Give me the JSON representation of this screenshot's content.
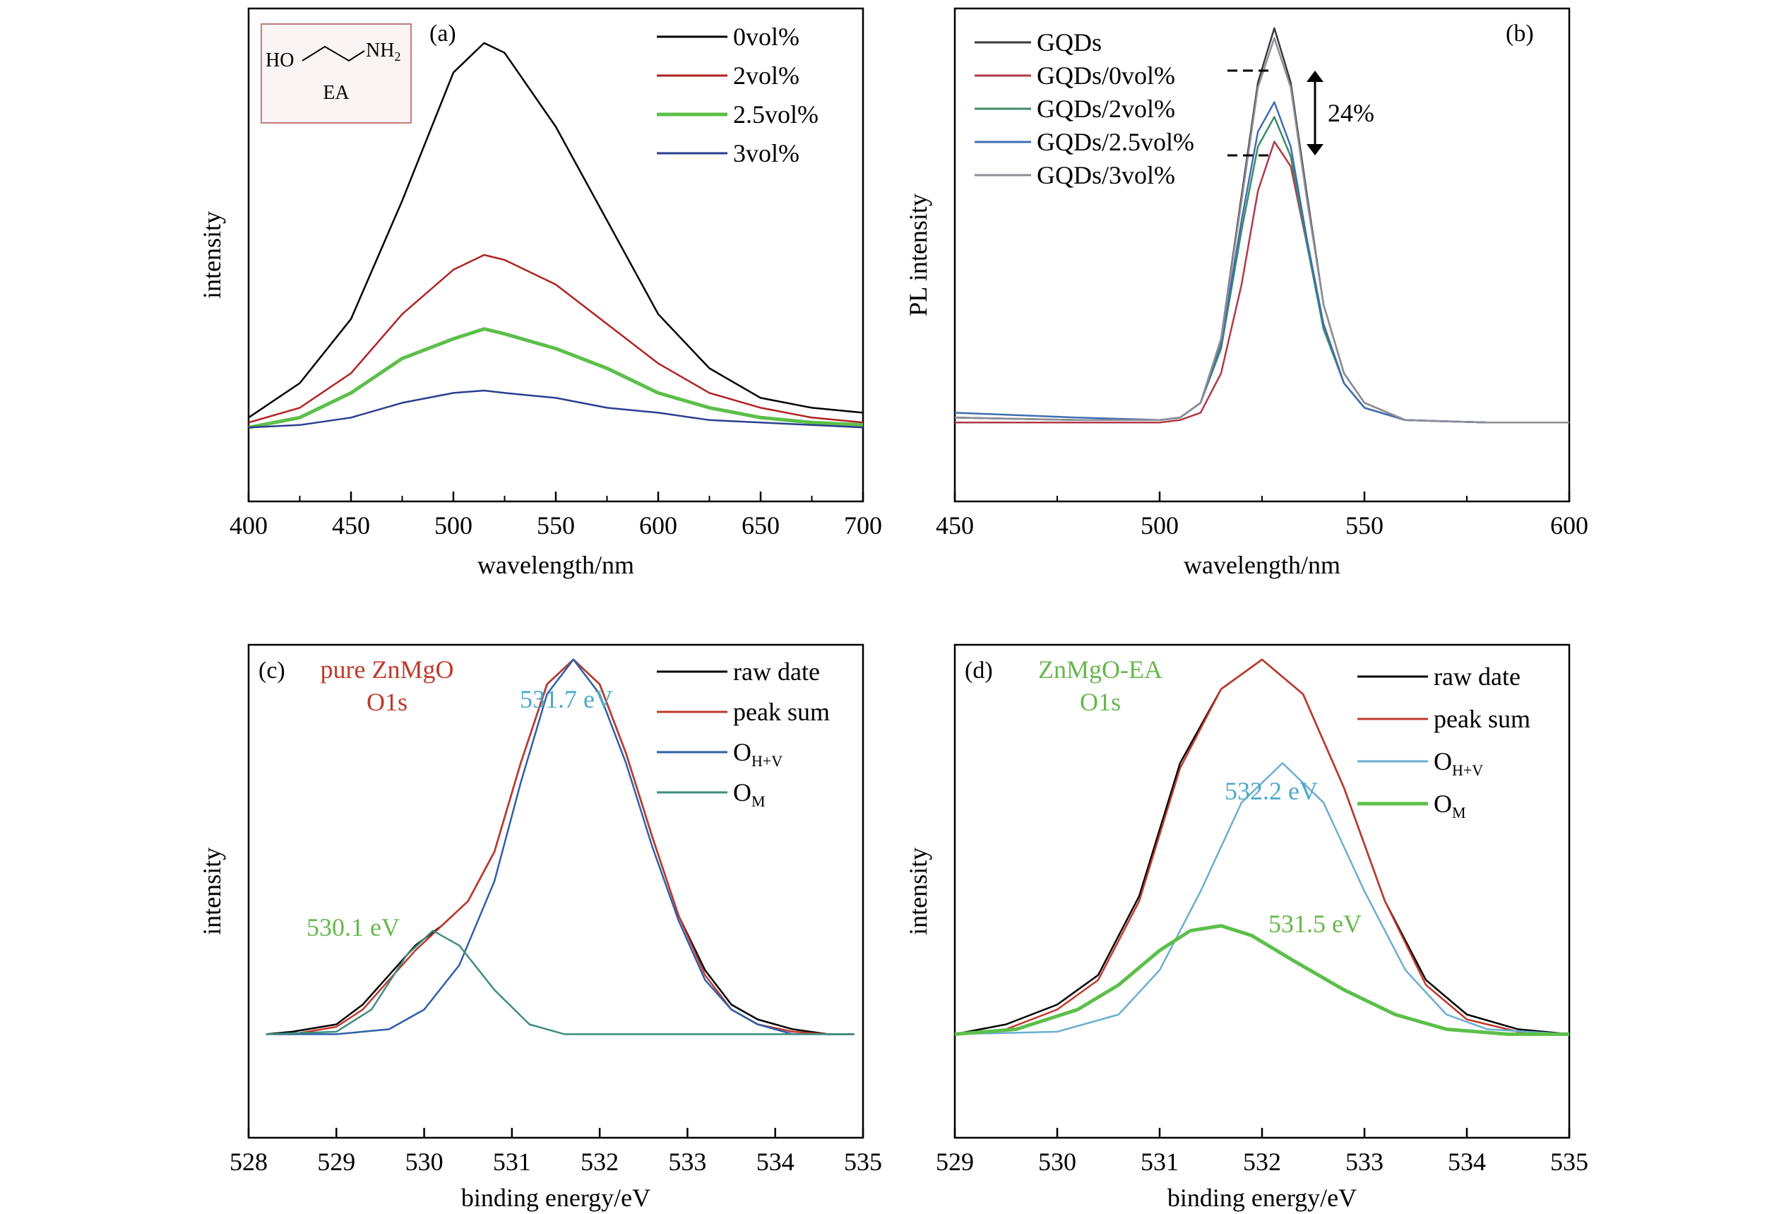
{
  "chart_data": [
    {
      "type": "line",
      "panel_label": "(a)",
      "xlabel": "wavelength/nm",
      "ylabel": "intensity",
      "xlim": [
        400,
        700
      ],
      "ylim": [
        0,
        1
      ],
      "x_ticks": [
        400,
        450,
        500,
        550,
        600,
        650,
        700
      ],
      "inset": {
        "mol_ho": "HO",
        "mol_nh": "NH",
        "mol_sub": "2",
        "mol_name": "EA"
      },
      "legend": [
        {
          "label": "0vol%",
          "color": "#000000"
        },
        {
          "label": "2vol%",
          "color": "#b22222"
        },
        {
          "label": "2.5vol%",
          "color": "#5cbf4a"
        },
        {
          "label": "3vol%",
          "color": "#2a3f8f"
        }
      ],
      "series": [
        {
          "name": "0vol%",
          "color": "#000000",
          "x": [
            400,
            425,
            450,
            475,
            500,
            515,
            525,
            550,
            575,
            600,
            625,
            650,
            675,
            700
          ],
          "y": [
            0.17,
            0.24,
            0.37,
            0.61,
            0.87,
            0.93,
            0.91,
            0.76,
            0.57,
            0.38,
            0.27,
            0.21,
            0.19,
            0.18
          ]
        },
        {
          "name": "2vol%",
          "color": "#b22222",
          "x": [
            400,
            425,
            450,
            475,
            500,
            515,
            525,
            550,
            575,
            600,
            625,
            650,
            675,
            700
          ],
          "y": [
            0.16,
            0.19,
            0.26,
            0.38,
            0.47,
            0.5,
            0.49,
            0.44,
            0.36,
            0.28,
            0.22,
            0.19,
            0.17,
            0.16
          ]
        },
        {
          "name": "2.5vol%",
          "color": "#5cbf4a",
          "x": [
            400,
            425,
            450,
            475,
            500,
            515,
            525,
            550,
            575,
            600,
            625,
            650,
            675,
            700
          ],
          "y": [
            0.15,
            0.17,
            0.22,
            0.29,
            0.33,
            0.35,
            0.34,
            0.31,
            0.27,
            0.22,
            0.19,
            0.17,
            0.16,
            0.155
          ]
        },
        {
          "name": "3vol%",
          "color": "#2a3f8f",
          "x": [
            400,
            425,
            450,
            475,
            500,
            515,
            525,
            550,
            575,
            600,
            625,
            650,
            675,
            700
          ],
          "y": [
            0.15,
            0.155,
            0.17,
            0.2,
            0.22,
            0.225,
            0.22,
            0.21,
            0.19,
            0.18,
            0.165,
            0.16,
            0.155,
            0.15
          ]
        }
      ]
    },
    {
      "type": "line",
      "panel_label": "(b)",
      "xlabel": "wavelength/nm",
      "ylabel": "PL intensity",
      "xlim": [
        450,
        600
      ],
      "ylim": [
        0,
        1
      ],
      "x_ticks": [
        450,
        500,
        550,
        600
      ],
      "annotation": "24%",
      "legend": [
        {
          "label": "GQDs",
          "color": "#3a3a3a"
        },
        {
          "label": "GQDs/0vol%",
          "color": "#b03a48"
        },
        {
          "label": "GQDs/2vol%",
          "color": "#3f8a66"
        },
        {
          "label": "GQDs/2.5vol%",
          "color": "#3f6fb0"
        },
        {
          "label": "GQDs/3vol%",
          "color": "#8e8e99"
        }
      ],
      "series": [
        {
          "name": "GQDs",
          "color": "#3a3a3a",
          "x": [
            450,
            480,
            500,
            505,
            510,
            515,
            520,
            524,
            528,
            532,
            536,
            540,
            545,
            550,
            560,
            580,
            600
          ],
          "y": [
            0.17,
            0.165,
            0.165,
            0.17,
            0.2,
            0.33,
            0.62,
            0.85,
            0.96,
            0.85,
            0.62,
            0.4,
            0.26,
            0.2,
            0.165,
            0.16,
            0.16
          ]
        },
        {
          "name": "GQDs/0vol%",
          "color": "#b03a48",
          "x": [
            450,
            480,
            500,
            505,
            510,
            515,
            520,
            524,
            528,
            532,
            536,
            540,
            545,
            550,
            560,
            580,
            600
          ],
          "y": [
            0.16,
            0.16,
            0.16,
            0.165,
            0.18,
            0.26,
            0.44,
            0.63,
            0.73,
            0.68,
            0.52,
            0.36,
            0.24,
            0.19,
            0.165,
            0.16,
            0.16
          ]
        },
        {
          "name": "GQDs/2vol%",
          "color": "#3f8a66",
          "x": [
            450,
            480,
            500,
            505,
            510,
            515,
            520,
            524,
            528,
            532,
            536,
            540,
            545,
            550,
            560,
            580,
            600
          ],
          "y": [
            0.17,
            0.165,
            0.165,
            0.17,
            0.2,
            0.31,
            0.55,
            0.72,
            0.78,
            0.7,
            0.52,
            0.35,
            0.24,
            0.19,
            0.165,
            0.16,
            0.16
          ]
        },
        {
          "name": "GQDs/2.5vol%",
          "color": "#3f6fb0",
          "x": [
            450,
            480,
            500,
            505,
            510,
            515,
            520,
            524,
            528,
            532,
            536,
            540,
            545,
            550,
            560,
            580,
            600
          ],
          "y": [
            0.18,
            0.17,
            0.165,
            0.17,
            0.2,
            0.32,
            0.57,
            0.75,
            0.81,
            0.72,
            0.53,
            0.36,
            0.24,
            0.19,
            0.165,
            0.16,
            0.16
          ]
        },
        {
          "name": "GQDs/3vol%",
          "color": "#8e8e99",
          "x": [
            450,
            480,
            500,
            505,
            510,
            515,
            520,
            524,
            528,
            532,
            536,
            540,
            545,
            550,
            560,
            580,
            600
          ],
          "y": [
            0.17,
            0.165,
            0.165,
            0.17,
            0.2,
            0.33,
            0.61,
            0.84,
            0.94,
            0.84,
            0.61,
            0.4,
            0.26,
            0.2,
            0.165,
            0.16,
            0.16
          ]
        }
      ]
    },
    {
      "type": "line",
      "panel_label": "(c)",
      "title_line1": "pure ZnMgO",
      "title_line2": "O1s",
      "xlabel": "binding energy/eV",
      "ylabel": "intensity",
      "xlim": [
        528,
        535
      ],
      "ylim": [
        0,
        1
      ],
      "x_ticks": [
        528,
        529,
        530,
        531,
        532,
        533,
        534,
        535
      ],
      "annotations": [
        {
          "text": "531.7 eV",
          "color": "#4fa8c9",
          "x": 531.7
        },
        {
          "text": "530.1 eV",
          "color": "#66b84a",
          "x": 530.1
        }
      ],
      "legend": [
        {
          "label": "raw date",
          "color": "#000000"
        },
        {
          "label": "peak sum",
          "color": "#c0392b"
        },
        {
          "label": "O",
          "sub": "H+V",
          "color": "#2f5fa8"
        },
        {
          "label": "O",
          "sub": "M",
          "color": "#3e8e7e"
        }
      ],
      "series": [
        {
          "name": "raw date",
          "color": "#000000",
          "x": [
            528.2,
            528.5,
            529,
            529.3,
            529.6,
            529.9,
            530.2,
            530.5,
            530.8,
            531.1,
            531.4,
            531.7,
            532,
            532.3,
            532.6,
            532.9,
            533.2,
            533.5,
            533.8,
            534.2,
            534.6,
            534.9
          ],
          "y": [
            0.21,
            0.215,
            0.23,
            0.27,
            0.33,
            0.39,
            0.43,
            0.48,
            0.58,
            0.76,
            0.92,
            0.97,
            0.92,
            0.78,
            0.61,
            0.45,
            0.34,
            0.27,
            0.24,
            0.22,
            0.21,
            0.21
          ]
        },
        {
          "name": "peak sum",
          "color": "#c0392b",
          "x": [
            528.2,
            528.5,
            529,
            529.3,
            529.6,
            529.9,
            530.2,
            530.5,
            530.8,
            531.1,
            531.4,
            531.7,
            532,
            532.3,
            532.6,
            532.9,
            533.2,
            533.5,
            533.8,
            534.2,
            534.6,
            534.9
          ],
          "y": [
            0.21,
            0.21,
            0.225,
            0.26,
            0.32,
            0.38,
            0.43,
            0.48,
            0.58,
            0.76,
            0.92,
            0.97,
            0.92,
            0.78,
            0.61,
            0.45,
            0.33,
            0.26,
            0.23,
            0.215,
            0.21,
            0.21
          ]
        },
        {
          "name": "OH+V",
          "color": "#2f5fa8",
          "x": [
            528.2,
            529,
            529.6,
            530,
            530.4,
            530.8,
            531.1,
            531.4,
            531.7,
            532,
            532.3,
            532.6,
            532.9,
            533.2,
            533.5,
            533.8,
            534.2,
            534.9
          ],
          "y": [
            0.21,
            0.21,
            0.22,
            0.26,
            0.35,
            0.52,
            0.72,
            0.9,
            0.97,
            0.9,
            0.76,
            0.59,
            0.44,
            0.32,
            0.26,
            0.23,
            0.21,
            0.21
          ]
        },
        {
          "name": "OM",
          "color": "#3e8e7e",
          "x": [
            528.2,
            529,
            529.4,
            529.8,
            530.1,
            530.4,
            530.8,
            531.2,
            531.6,
            532,
            534.9
          ],
          "y": [
            0.21,
            0.215,
            0.26,
            0.37,
            0.42,
            0.39,
            0.3,
            0.23,
            0.21,
            0.21,
            0.21
          ]
        }
      ]
    },
    {
      "type": "line",
      "panel_label": "(d)",
      "title_line1": "ZnMgO-EA",
      "title_line2": "O1s",
      "xlabel": "binding energy/eV",
      "ylabel": "intensity",
      "xlim": [
        529,
        535
      ],
      "ylim": [
        0,
        1
      ],
      "x_ticks": [
        529,
        530,
        531,
        532,
        533,
        534,
        535
      ],
      "annotations": [
        {
          "text": "532.2 eV",
          "color": "#4fa8c9",
          "x": 532.2
        },
        {
          "text": "531.5 eV",
          "color": "#66b84a",
          "x": 531.5
        }
      ],
      "legend": [
        {
          "label": "raw date",
          "color": "#000000"
        },
        {
          "label": "peak sum",
          "color": "#c0392b"
        },
        {
          "label": "O",
          "sub": "H+V",
          "color": "#6aaed0"
        },
        {
          "label": "O",
          "sub": "M",
          "color": "#5cbf4a"
        }
      ],
      "series": [
        {
          "name": "raw date",
          "color": "#000000",
          "x": [
            529,
            529.5,
            530,
            530.4,
            530.8,
            531.2,
            531.6,
            532,
            532.4,
            532.8,
            533.2,
            533.6,
            534,
            534.5,
            535
          ],
          "y": [
            0.21,
            0.23,
            0.27,
            0.33,
            0.49,
            0.76,
            0.91,
            0.97,
            0.9,
            0.71,
            0.48,
            0.32,
            0.25,
            0.22,
            0.21
          ]
        },
        {
          "name": "peak sum",
          "color": "#c0392b",
          "x": [
            529,
            529.5,
            530,
            530.4,
            530.8,
            531.2,
            531.6,
            532,
            532.4,
            532.8,
            533.2,
            533.6,
            534,
            534.5,
            535
          ],
          "y": [
            0.21,
            0.22,
            0.26,
            0.32,
            0.48,
            0.75,
            0.91,
            0.97,
            0.9,
            0.71,
            0.48,
            0.31,
            0.24,
            0.215,
            0.21
          ]
        },
        {
          "name": "OH+V",
          "color": "#6aaed0",
          "x": [
            529,
            530,
            530.6,
            531,
            531.4,
            531.8,
            532.2,
            532.6,
            533,
            533.4,
            533.8,
            534.2,
            535
          ],
          "y": [
            0.21,
            0.215,
            0.25,
            0.34,
            0.5,
            0.68,
            0.76,
            0.68,
            0.5,
            0.34,
            0.25,
            0.22,
            0.21
          ]
        },
        {
          "name": "OM",
          "color": "#5cbf4a",
          "x": [
            529,
            529.6,
            530.2,
            530.6,
            531,
            531.3,
            531.6,
            531.9,
            532.3,
            532.8,
            533.3,
            533.8,
            534.4,
            535
          ],
          "y": [
            0.21,
            0.22,
            0.26,
            0.31,
            0.38,
            0.42,
            0.43,
            0.41,
            0.36,
            0.3,
            0.25,
            0.22,
            0.21,
            0.21
          ]
        }
      ]
    }
  ]
}
